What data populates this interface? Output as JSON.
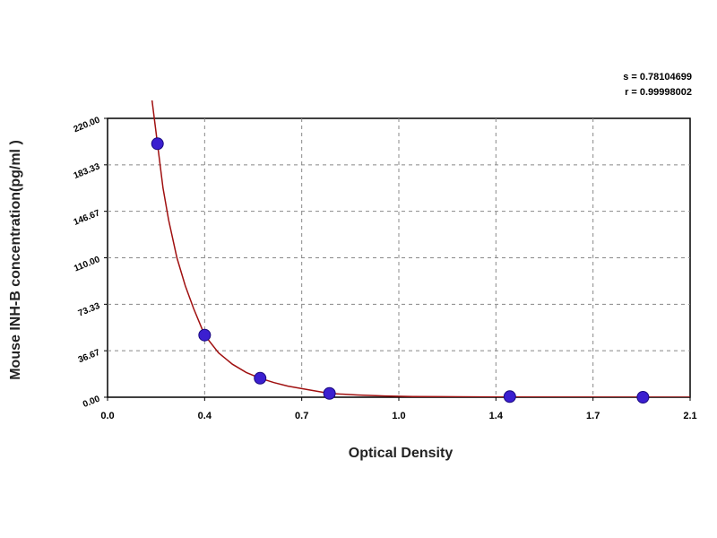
{
  "stats": {
    "s": "s = 0.78104699",
    "r": "r = 0.99998002"
  },
  "chart_data": {
    "type": "scatter",
    "xlabel": "Optical Density",
    "ylabel": "Mouse INH-B concentration(pg/ml )",
    "xlim": [
      0.0,
      2.1
    ],
    "ylim": [
      0.0,
      220.0
    ],
    "x_ticks": [
      "0.0",
      "0.4",
      "0.7",
      "1.0",
      "1.4",
      "1.7",
      "2.1"
    ],
    "y_ticks": [
      "0.00",
      "36.67",
      "73.33",
      "110.00",
      "146.67",
      "183.33",
      "220.00"
    ],
    "grid": true,
    "colors": {
      "points": "#3b1fd0",
      "curve": "#a01010"
    },
    "series": [
      {
        "x": [
          0.18,
          0.35,
          0.55,
          0.8,
          1.45,
          1.93
        ],
        "y": [
          200.0,
          49.0,
          15.0,
          3.0,
          0.5,
          0.0
        ]
      }
    ],
    "fit": {
      "x": [
        0.16,
        0.18,
        0.2,
        0.22,
        0.25,
        0.28,
        0.31,
        0.35,
        0.4,
        0.45,
        0.5,
        0.55,
        0.6,
        0.65,
        0.7,
        0.8,
        0.9,
        1.0,
        1.1,
        1.2,
        1.4,
        1.7,
        2.1
      ],
      "y": [
        235.0,
        200.0,
        165.0,
        140.0,
        110.0,
        88.0,
        70.0,
        49.0,
        35.0,
        26.0,
        19.5,
        15.0,
        11.5,
        8.8,
        6.8,
        3.0,
        1.8,
        1.0,
        0.6,
        0.4,
        0.2,
        0.05,
        0.0
      ]
    }
  }
}
